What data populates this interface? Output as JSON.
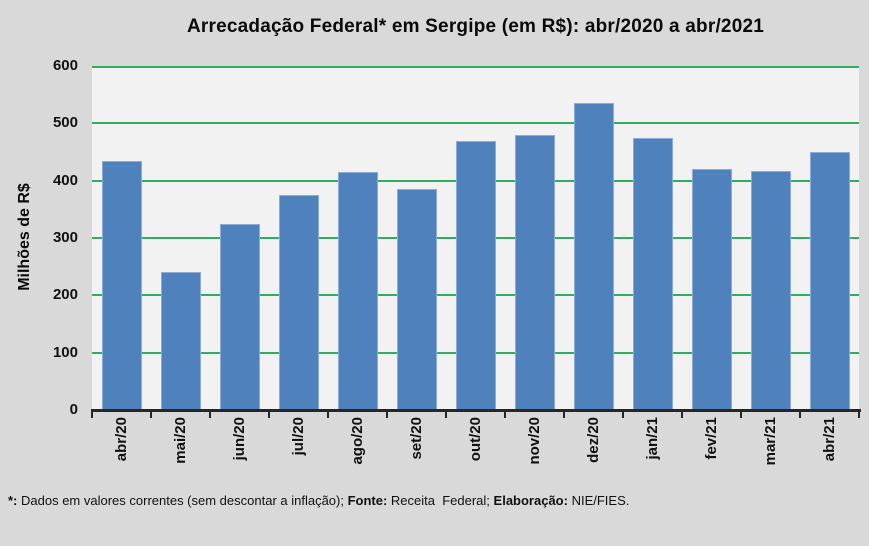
{
  "chart_data": {
    "type": "bar",
    "title": "Arrecadação Federal* em Sergipe (em R$): abr/2020 a abr/2021",
    "ylabel": "Milhões de R$",
    "xlabel": "",
    "categories": [
      "abr/20",
      "mai/20",
      "jun/20",
      "jul/20",
      "ago/20",
      "set/20",
      "out/20",
      "nov/20",
      "dez/20",
      "jan/21",
      "fev/21",
      "mar/21",
      "abr/21"
    ],
    "values": [
      435,
      240,
      325,
      375,
      415,
      385,
      470,
      480,
      535,
      475,
      420,
      417,
      450
    ],
    "ylim": [
      0,
      600
    ],
    "yticks": [
      0,
      100,
      200,
      300,
      400,
      500,
      600
    ],
    "grid": true,
    "gridline_orientation": "horizontal",
    "legend": false,
    "x_label_rotation_degrees": -90,
    "colors": {
      "bar_fill": "#4f81bd",
      "bar_border": "#8aacd6",
      "gridline": "#2fad60",
      "axis": "#262626",
      "plot_bg": "#f2f2f2",
      "page_bg": "#d9d9d9"
    }
  },
  "footnote": {
    "star_label": "*: ",
    "text1": "Dados em valores correntes (sem descontar a inflação); ",
    "fonte_label": "Fonte: ",
    "fonte_text": "Receita  Federal; ",
    "elab_label": "Elaboração: ",
    "elab_text": "NIE/FIES."
  }
}
